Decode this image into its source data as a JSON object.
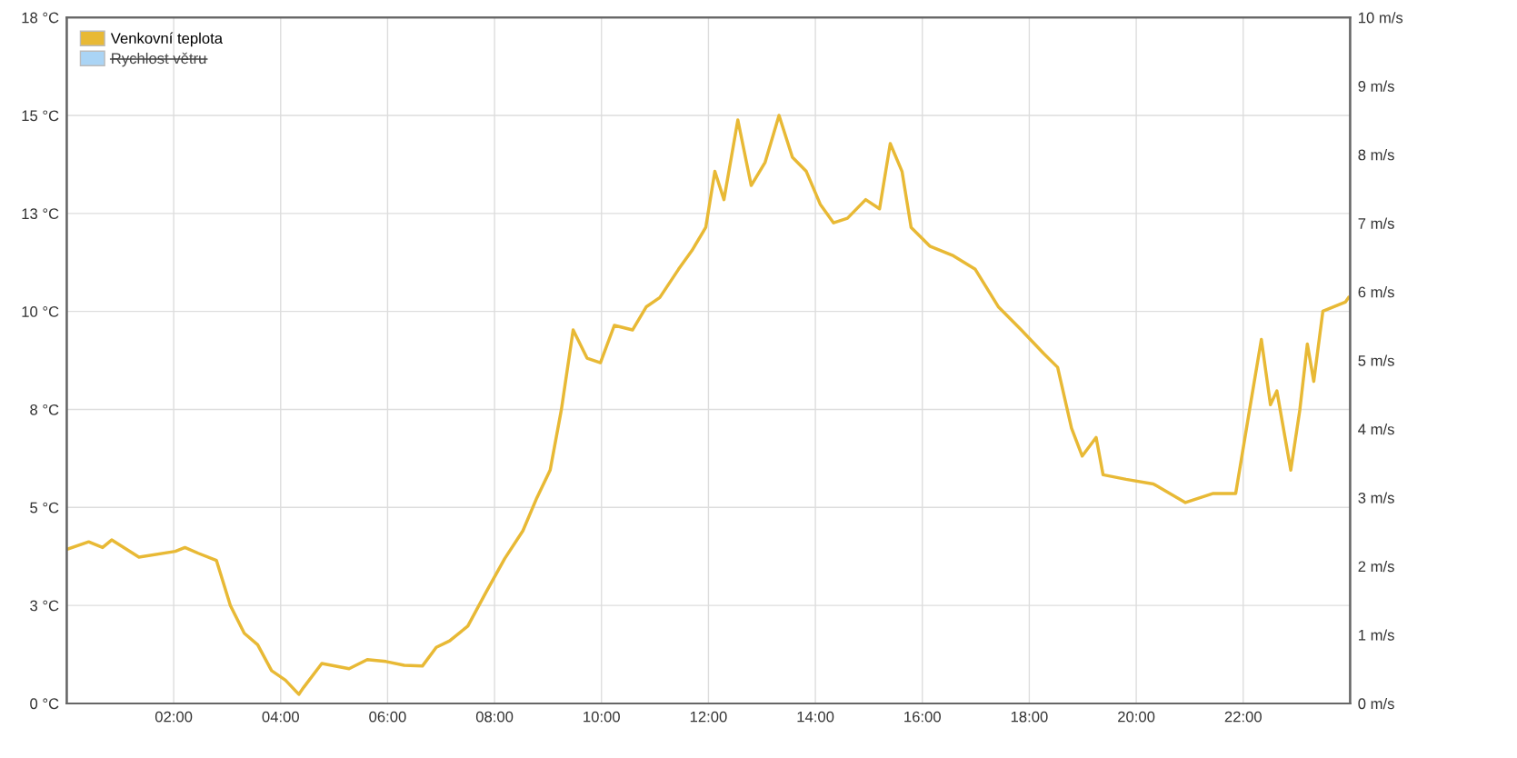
{
  "chart_data": {
    "type": "line",
    "xlim": [
      0,
      24
    ],
    "xticks": [
      {
        "value": 2,
        "label": "02:00"
      },
      {
        "value": 4,
        "label": "04:00"
      },
      {
        "value": 6,
        "label": "06:00"
      },
      {
        "value": 8,
        "label": "08:00"
      },
      {
        "value": 10,
        "label": "10:00"
      },
      {
        "value": 12,
        "label": "12:00"
      },
      {
        "value": 14,
        "label": "14:00"
      },
      {
        "value": 16,
        "label": "16:00"
      },
      {
        "value": 18,
        "label": "18:00"
      },
      {
        "value": 20,
        "label": "20:00"
      },
      {
        "value": 22,
        "label": "22:00"
      }
    ],
    "ylim": [
      0,
      18
    ],
    "yticks": [
      {
        "value": 0,
        "label": "0 °C"
      },
      {
        "value": 2.571,
        "label": "3 °C"
      },
      {
        "value": 5.143,
        "label": "5 °C"
      },
      {
        "value": 7.714,
        "label": "8 °C"
      },
      {
        "value": 10.286,
        "label": "10 °C"
      },
      {
        "value": 12.857,
        "label": "13 °C"
      },
      {
        "value": 15.429,
        "label": "15 °C"
      },
      {
        "value": 18,
        "label": "18 °C"
      }
    ],
    "y2lim": [
      0,
      10
    ],
    "y2ticks": [
      {
        "value": 0,
        "label": "0 m/s"
      },
      {
        "value": 1,
        "label": "1 m/s"
      },
      {
        "value": 2,
        "label": "2 m/s"
      },
      {
        "value": 3,
        "label": "3 m/s"
      },
      {
        "value": 4,
        "label": "4 m/s"
      },
      {
        "value": 5,
        "label": "5 m/s"
      },
      {
        "value": 6,
        "label": "6 m/s"
      },
      {
        "value": 7,
        "label": "7 m/s"
      },
      {
        "value": 8,
        "label": "8 m/s"
      },
      {
        "value": 9,
        "label": "9 m/s"
      },
      {
        "value": 10,
        "label": "10 m/s"
      }
    ],
    "grid": true,
    "legend": "top left",
    "marker": "none",
    "line_style": "solid",
    "series": [
      {
        "name": "Venkovní teplota",
        "color": "#e8b935",
        "x": [
          0.0,
          0.41,
          0.67,
          0.84,
          1.35,
          2.03,
          2.21,
          2.46,
          2.8,
          3.06,
          3.32,
          3.57,
          3.83,
          4.09,
          4.34,
          4.43,
          4.77,
          5.28,
          5.62,
          5.97,
          6.31,
          6.65,
          6.91,
          7.16,
          7.5,
          7.85,
          8.19,
          8.53,
          8.79,
          9.04,
          9.25,
          9.47,
          9.73,
          9.98,
          10.24,
          10.58,
          10.84,
          11.09,
          11.44,
          11.69,
          11.95,
          12.12,
          12.29,
          12.55,
          12.8,
          13.06,
          13.32,
          13.57,
          13.83,
          14.09,
          14.34,
          14.6,
          14.94,
          15.2,
          15.4,
          15.62,
          15.79,
          16.14,
          16.56,
          16.99,
          17.42,
          17.85,
          18.27,
          18.53,
          18.79,
          18.99,
          19.25,
          19.38,
          19.81,
          20.32,
          20.92,
          21.44,
          21.86,
          22.12,
          22.34,
          22.51,
          22.63,
          22.89,
          23.06,
          23.2,
          23.32,
          23.49,
          23.91,
          23.97
        ],
        "values": [
          4.04,
          4.24,
          4.09,
          4.29,
          3.84,
          3.99,
          4.09,
          3.94,
          3.75,
          2.57,
          1.84,
          1.54,
          0.86,
          0.61,
          0.24,
          0.42,
          1.05,
          0.91,
          1.15,
          1.1,
          1.0,
          0.98,
          1.47,
          1.64,
          2.03,
          2.94,
          3.8,
          4.53,
          5.39,
          6.12,
          7.71,
          9.8,
          9.06,
          8.94,
          9.92,
          9.8,
          10.41,
          10.65,
          11.39,
          11.88,
          12.49,
          13.96,
          13.22,
          15.31,
          13.59,
          14.2,
          15.43,
          14.33,
          13.96,
          13.1,
          12.61,
          12.73,
          13.22,
          12.98,
          14.69,
          13.96,
          12.49,
          12.0,
          11.76,
          11.39,
          10.41,
          9.8,
          9.18,
          8.82,
          7.22,
          6.49,
          6.98,
          6.0,
          5.88,
          5.76,
          5.27,
          5.51,
          5.51,
          7.71,
          9.55,
          7.84,
          8.2,
          6.12,
          7.71,
          9.43,
          8.45,
          10.29,
          10.53,
          10.65
        ]
      },
      {
        "name": "Rychlost větru",
        "color": "#aad4f5"
      }
    ]
  }
}
